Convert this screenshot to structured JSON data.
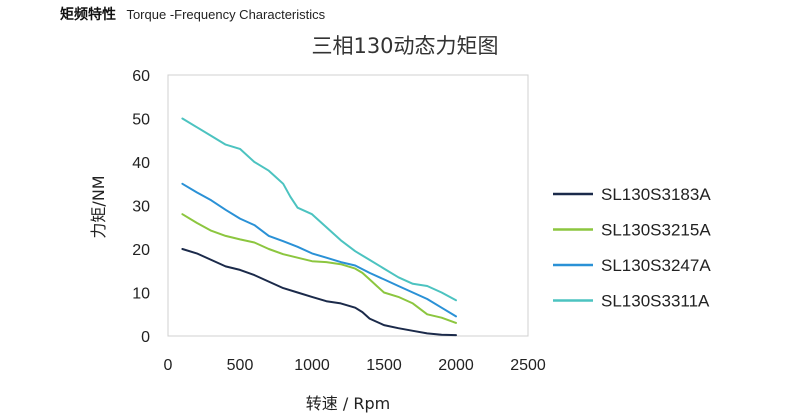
{
  "header": {
    "title_cn": "矩频特性",
    "title_en": "Torque -Frequency Characteristics"
  },
  "chart_data": {
    "type": "line",
    "title": "三相130动态力矩图",
    "xlabel": "转速 / Rpm",
    "ylabel": "力矩/NM",
    "xlim": [
      0,
      2500
    ],
    "ylim": [
      0,
      60
    ],
    "xticks": [
      "0",
      "500",
      "1000",
      "1500",
      "2000",
      "2500"
    ],
    "yticks": [
      "0",
      "10",
      "20",
      "30",
      "40",
      "50",
      "60"
    ],
    "grid": false,
    "legend_position": "right",
    "series": [
      {
        "name": "SL130S3183A",
        "color": "#1b2a4a",
        "x": [
          100,
          200,
          300,
          400,
          500,
          600,
          700,
          800,
          900,
          1000,
          1100,
          1200,
          1300,
          1350,
          1400,
          1500,
          1600,
          1700,
          1800,
          1900,
          2000
        ],
        "y": [
          20,
          19,
          17.5,
          16,
          15.2,
          14,
          12.5,
          11,
          10,
          9,
          8,
          7.5,
          6.5,
          5.5,
          4,
          2.5,
          1.8,
          1.2,
          0.6,
          0.3,
          0.2
        ]
      },
      {
        "name": "SL130S3215A",
        "color": "#8cc63f",
        "x": [
          100,
          200,
          300,
          400,
          500,
          600,
          700,
          800,
          900,
          1000,
          1100,
          1200,
          1300,
          1350,
          1400,
          1450,
          1500,
          1600,
          1700,
          1800,
          1900,
          2000
        ],
        "y": [
          28,
          26,
          24.2,
          23,
          22.2,
          21.5,
          20,
          18.8,
          18,
          17.2,
          17,
          16.5,
          15.5,
          14.5,
          13,
          11.5,
          10,
          9,
          7.5,
          5,
          4.2,
          3
        ]
      },
      {
        "name": "SL130S3247A",
        "color": "#2a91d6",
        "x": [
          100,
          200,
          300,
          400,
          500,
          600,
          700,
          800,
          900,
          1000,
          1100,
          1200,
          1300,
          1400,
          1500,
          1600,
          1700,
          1800,
          1900,
          2000
        ],
        "y": [
          35,
          33,
          31.2,
          29,
          27,
          25.5,
          23,
          21.8,
          20.5,
          19,
          18,
          17,
          16.2,
          14.5,
          13,
          11.5,
          10,
          8.5,
          6.5,
          4.5
        ]
      },
      {
        "name": "SL130S3311A",
        "color": "#4cc3c0",
        "x": [
          100,
          200,
          300,
          400,
          500,
          600,
          700,
          750,
          800,
          850,
          900,
          1000,
          1100,
          1200,
          1300,
          1400,
          1500,
          1600,
          1700,
          1800,
          1900,
          2000
        ],
        "y": [
          50,
          48,
          46,
          44,
          43,
          40,
          38,
          36.5,
          35,
          32,
          29.5,
          28,
          25,
          22,
          19.5,
          17.5,
          15.5,
          13.5,
          12,
          11.5,
          10,
          8.2
        ]
      }
    ]
  }
}
